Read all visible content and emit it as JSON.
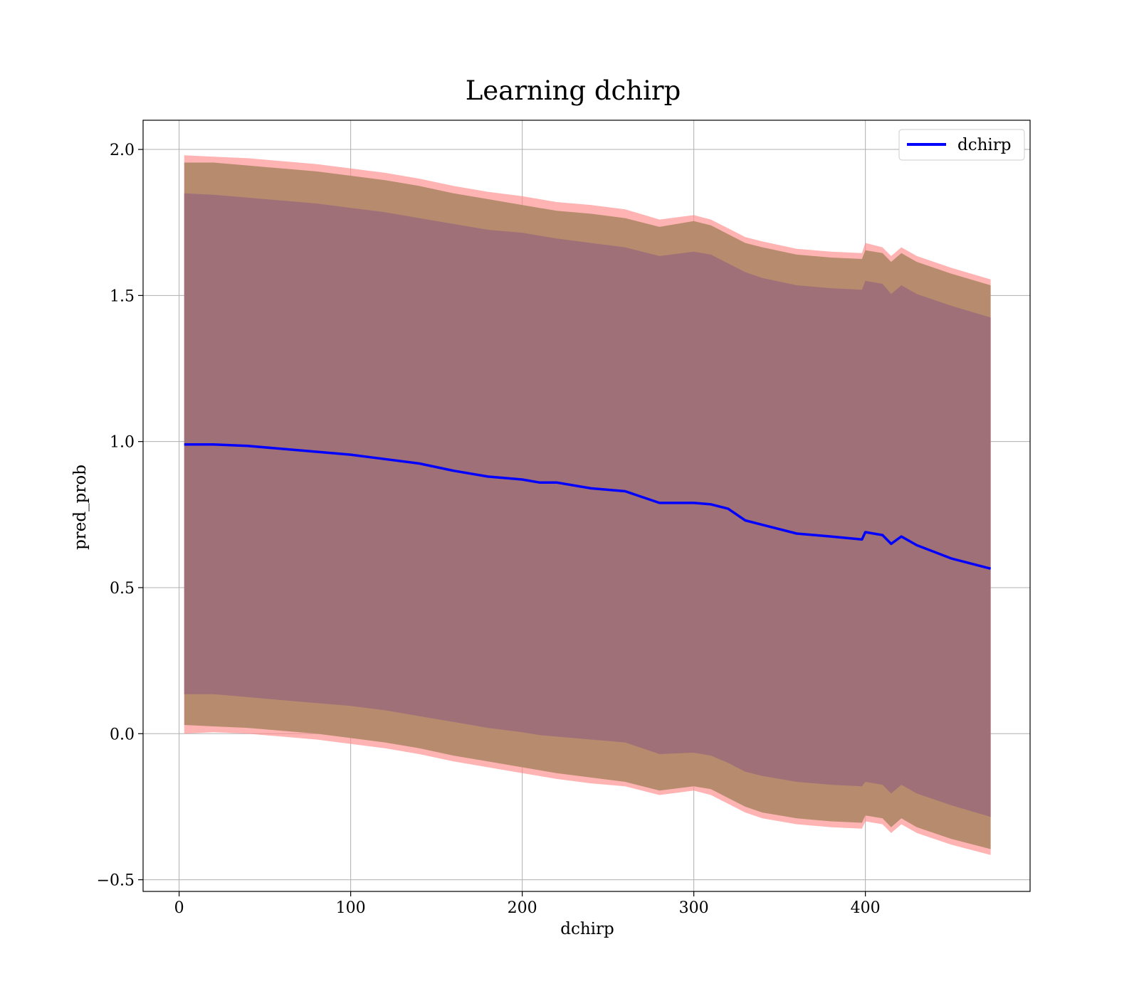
{
  "chart_data": {
    "type": "line",
    "title": "Learning dchirp",
    "xlabel": "dchirp",
    "ylabel": "pred_prob",
    "xlim": [
      -21,
      496
    ],
    "ylim": [
      -0.54,
      2.1
    ],
    "xticks": [
      0,
      100,
      200,
      300,
      400
    ],
    "xtick_labels": [
      "0",
      "100",
      "200",
      "300",
      "400"
    ],
    "yticks": [
      -0.5,
      0.0,
      0.5,
      1.0,
      1.5,
      2.0
    ],
    "ytick_labels": [
      "−0.5",
      "0.0",
      "0.5",
      "1.0",
      "1.5",
      "2.0"
    ],
    "grid": true,
    "legend": {
      "position": "top-right",
      "entries": [
        "dchirp"
      ]
    },
    "colors": {
      "line": "#0000ff",
      "band_outer": "#ff8a8a",
      "band_middle": "#b78c6e",
      "band_inner": "#a07078",
      "grid": "#b0b0b0"
    },
    "x": [
      3,
      20,
      40,
      60,
      80,
      100,
      120,
      140,
      160,
      180,
      200,
      210,
      220,
      240,
      260,
      280,
      300,
      310,
      320,
      330,
      340,
      360,
      380,
      398,
      400,
      410,
      415,
      421,
      430,
      450,
      473
    ],
    "series": [
      {
        "name": "dchirp",
        "role": "mean",
        "values": [
          0.99,
          0.99,
          0.985,
          0.975,
          0.965,
          0.955,
          0.94,
          0.925,
          0.9,
          0.88,
          0.87,
          0.86,
          0.86,
          0.84,
          0.83,
          0.79,
          0.79,
          0.785,
          0.77,
          0.73,
          0.715,
          0.685,
          0.675,
          0.665,
          0.69,
          0.68,
          0.65,
          0.675,
          0.645,
          0.6,
          0.565
        ]
      },
      {
        "role": "band_outer_upper",
        "values": [
          1.98,
          1.975,
          1.97,
          1.96,
          1.95,
          1.935,
          1.92,
          1.9,
          1.875,
          1.855,
          1.84,
          1.83,
          1.82,
          1.81,
          1.795,
          1.76,
          1.775,
          1.76,
          1.73,
          1.7,
          1.685,
          1.66,
          1.65,
          1.645,
          1.68,
          1.665,
          1.635,
          1.665,
          1.635,
          1.595,
          1.555
        ]
      },
      {
        "role": "band_middle_upper",
        "values": [
          1.955,
          1.955,
          1.945,
          1.935,
          1.925,
          1.91,
          1.895,
          1.875,
          1.85,
          1.83,
          1.81,
          1.8,
          1.79,
          1.78,
          1.765,
          1.735,
          1.755,
          1.74,
          1.71,
          1.68,
          1.665,
          1.64,
          1.63,
          1.625,
          1.655,
          1.645,
          1.615,
          1.645,
          1.615,
          1.575,
          1.535
        ]
      },
      {
        "role": "band_inner_upper",
        "values": [
          1.85,
          1.845,
          1.835,
          1.825,
          1.815,
          1.8,
          1.785,
          1.765,
          1.745,
          1.725,
          1.715,
          1.705,
          1.695,
          1.68,
          1.665,
          1.635,
          1.65,
          1.64,
          1.61,
          1.58,
          1.56,
          1.535,
          1.525,
          1.52,
          1.55,
          1.54,
          1.505,
          1.535,
          1.505,
          1.465,
          1.425
        ]
      },
      {
        "role": "band_inner_lower",
        "values": [
          0.135,
          0.135,
          0.125,
          0.115,
          0.105,
          0.095,
          0.08,
          0.06,
          0.04,
          0.02,
          0.005,
          -0.005,
          -0.01,
          -0.02,
          -0.03,
          -0.07,
          -0.065,
          -0.075,
          -0.1,
          -0.13,
          -0.145,
          -0.165,
          -0.175,
          -0.18,
          -0.165,
          -0.175,
          -0.205,
          -0.175,
          -0.205,
          -0.245,
          -0.285
        ]
      },
      {
        "role": "band_middle_lower",
        "values": [
          0.03,
          0.025,
          0.02,
          0.01,
          0.0,
          -0.015,
          -0.03,
          -0.05,
          -0.075,
          -0.095,
          -0.115,
          -0.125,
          -0.135,
          -0.15,
          -0.165,
          -0.195,
          -0.18,
          -0.19,
          -0.22,
          -0.25,
          -0.27,
          -0.29,
          -0.3,
          -0.305,
          -0.28,
          -0.29,
          -0.32,
          -0.29,
          -0.32,
          -0.36,
          -0.395
        ]
      },
      {
        "role": "band_outer_lower",
        "values": [
          0.0,
          0.005,
          0.0,
          -0.01,
          -0.02,
          -0.035,
          -0.05,
          -0.07,
          -0.095,
          -0.115,
          -0.135,
          -0.145,
          -0.155,
          -0.17,
          -0.18,
          -0.21,
          -0.195,
          -0.21,
          -0.24,
          -0.27,
          -0.29,
          -0.31,
          -0.32,
          -0.325,
          -0.3,
          -0.31,
          -0.34,
          -0.31,
          -0.34,
          -0.38,
          -0.415
        ]
      }
    ]
  }
}
